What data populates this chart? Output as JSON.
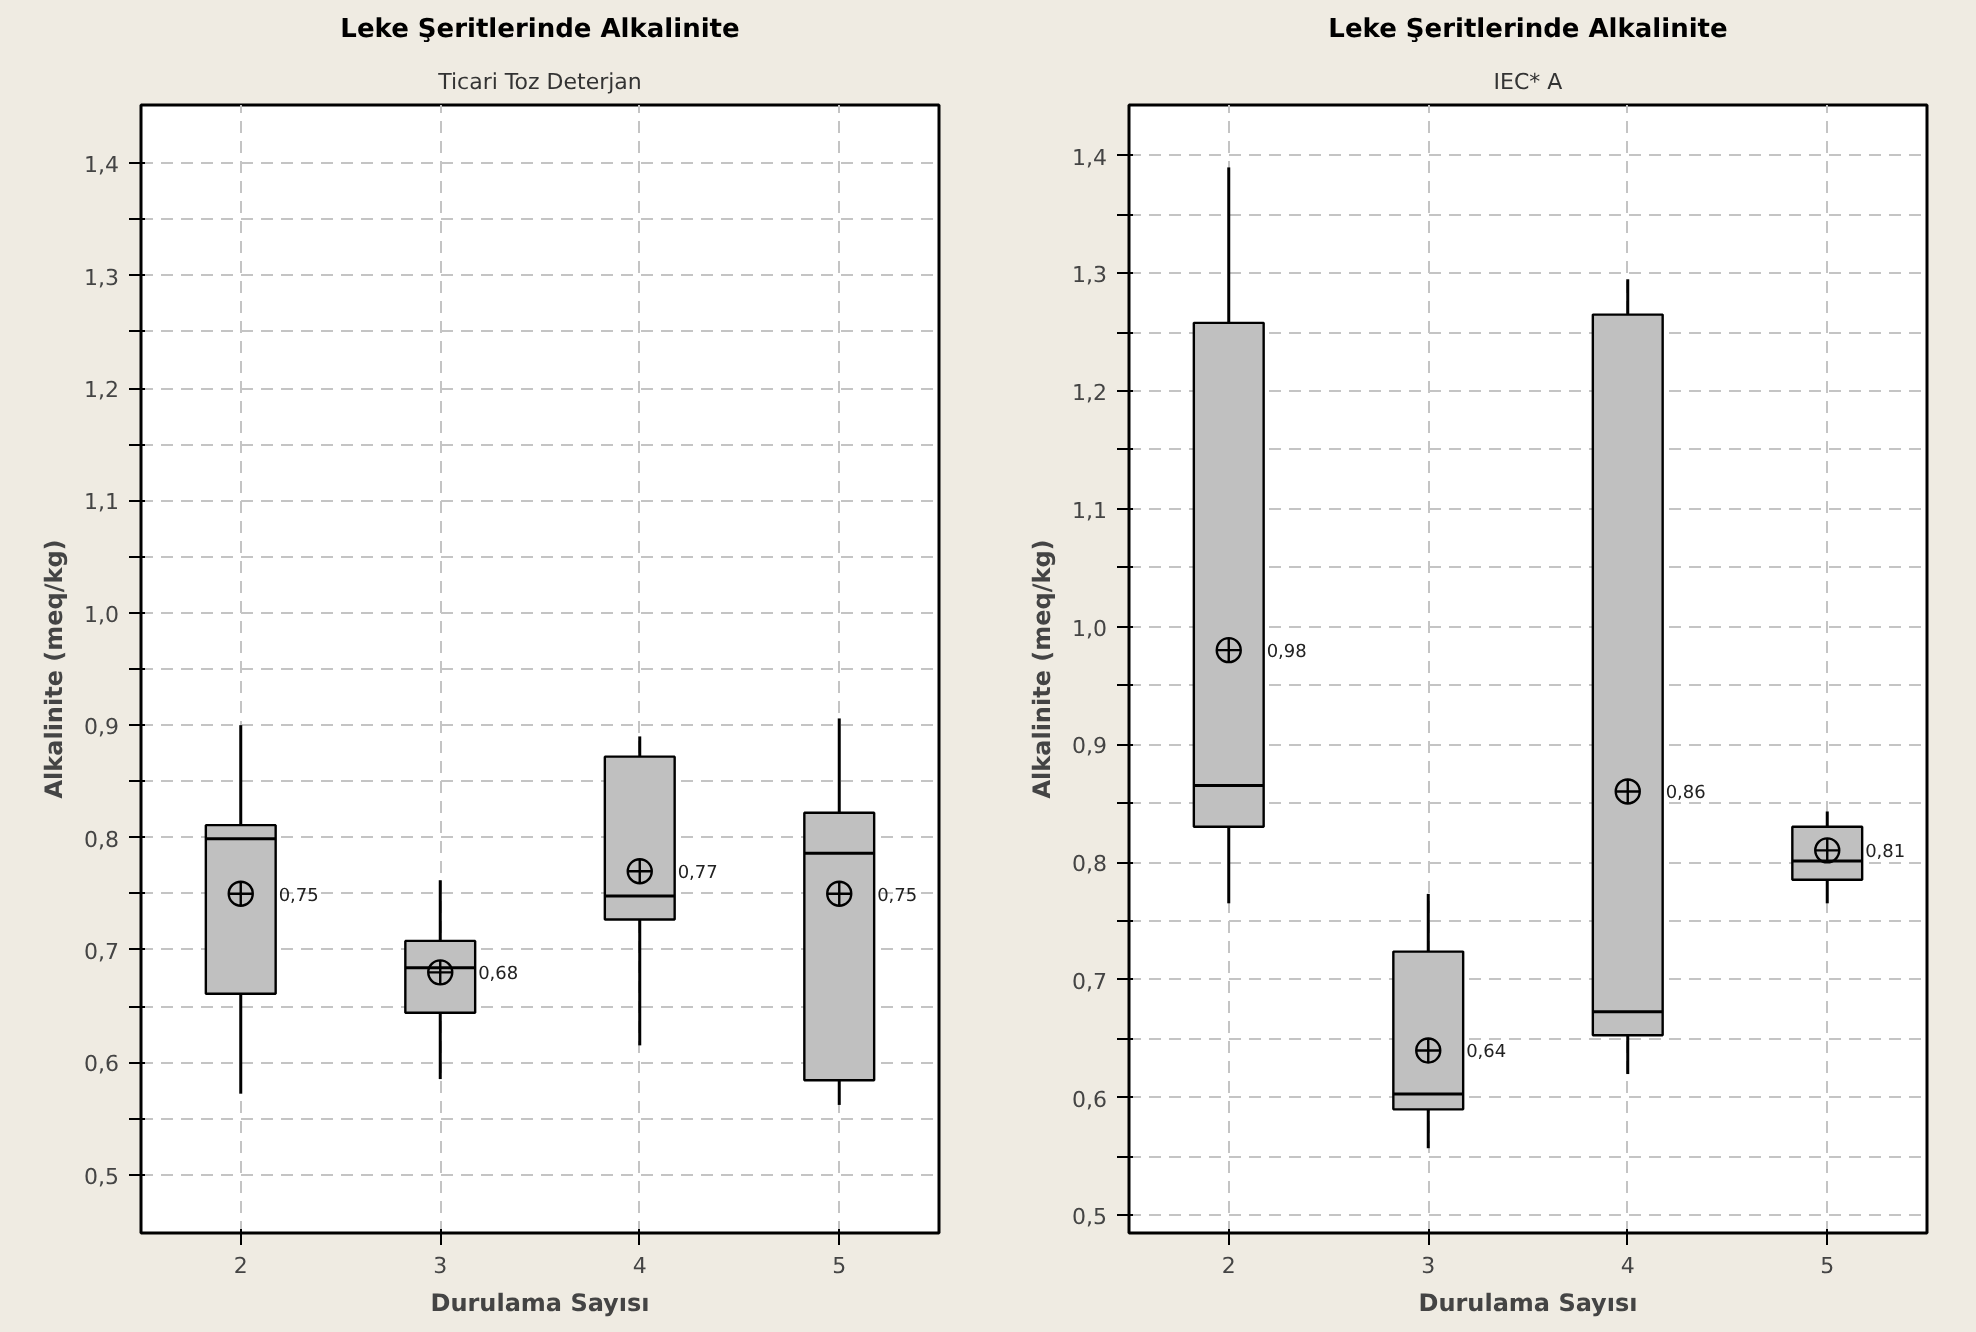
{
  "chart_data": [
    {
      "type": "box",
      "title": "Leke Şeritlerinde Alkalinite",
      "subtitle": "Ticari Toz Deterjan",
      "xlabel": "Durulama Sayısı",
      "ylabel": "Alkalinite (meq/kg)",
      "categories": [
        "2",
        "3",
        "4",
        "5"
      ],
      "color": "#c0c0c0",
      "boxes": [
        {
          "low": 0.572,
          "q1": 0.661,
          "median": 0.799,
          "q3": 0.811,
          "high": 0.9,
          "mean": 0.75
        },
        {
          "low": 0.585,
          "q1": 0.644,
          "median": 0.684,
          "q3": 0.708,
          "high": 0.762,
          "mean": 0.68
        },
        {
          "low": 0.615,
          "q1": 0.727,
          "median": 0.748,
          "q3": 0.872,
          "high": 0.89,
          "mean": 0.77
        },
        {
          "low": 0.562,
          "q1": 0.584,
          "median": 0.786,
          "q3": 0.822,
          "high": 0.906,
          "mean": 0.75
        }
      ],
      "value_labels": [
        "0,75",
        "0,68",
        "0,77",
        "0,75"
      ],
      "ylim": [
        0.448,
        1.452
      ],
      "yticks": [
        {
          "value": 0.5,
          "label": "0,5"
        },
        {
          "value": 0.55,
          "label": null
        },
        {
          "value": 0.6,
          "label": "0,6"
        },
        {
          "value": 0.65,
          "label": null
        },
        {
          "value": 0.7,
          "label": "0,7"
        },
        {
          "value": 0.75,
          "label": null
        },
        {
          "value": 0.8,
          "label": "0,8"
        },
        {
          "value": 0.85,
          "label": null
        },
        {
          "value": 0.9,
          "label": "0,9"
        },
        {
          "value": 0.95,
          "label": null
        },
        {
          "value": 1.0,
          "label": "1,0"
        },
        {
          "value": 1.05,
          "label": null
        },
        {
          "value": 1.1,
          "label": "1,1"
        },
        {
          "value": 1.15,
          "label": null
        },
        {
          "value": 1.2,
          "label": "1,2"
        },
        {
          "value": 1.25,
          "label": null
        },
        {
          "value": 1.3,
          "label": "1,3"
        },
        {
          "value": 1.35,
          "label": null
        },
        {
          "value": 1.4,
          "label": "1,4"
        }
      ],
      "grid": true
    },
    {
      "type": "box",
      "title": "Leke Şeritlerinde Alkalinite",
      "subtitle": "IEC* A",
      "xlabel": "Durulama Sayısı",
      "ylabel": "Alkalinite (meq/kg)",
      "categories": [
        "2",
        "3",
        "4",
        "5"
      ],
      "color": "#c0c0c0",
      "boxes": [
        {
          "low": 0.765,
          "q1": 0.83,
          "median": 0.865,
          "q3": 1.258,
          "high": 1.39,
          "mean": 0.98
        },
        {
          "low": 0.557,
          "q1": 0.59,
          "median": 0.603,
          "q3": 0.724,
          "high": 0.773,
          "mean": 0.64
        },
        {
          "low": 0.62,
          "q1": 0.653,
          "median": 0.673,
          "q3": 1.265,
          "high": 1.295,
          "mean": 0.86
        },
        {
          "low": 0.765,
          "q1": 0.785,
          "median": 0.801,
          "q3": 0.83,
          "high": 0.843,
          "mean": 0.81
        }
      ],
      "value_labels": [
        "0,98",
        "0,64",
        "0,86",
        "0,81"
      ],
      "ylim": [
        0.485,
        1.443
      ],
      "yticks": [
        {
          "value": 0.5,
          "label": "0,5"
        },
        {
          "value": 0.55,
          "label": null
        },
        {
          "value": 0.6,
          "label": "0,6"
        },
        {
          "value": 0.65,
          "label": null
        },
        {
          "value": 0.7,
          "label": "0,7"
        },
        {
          "value": 0.75,
          "label": null
        },
        {
          "value": 0.8,
          "label": "0,8"
        },
        {
          "value": 0.85,
          "label": null
        },
        {
          "value": 0.9,
          "label": "0,9"
        },
        {
          "value": 0.95,
          "label": null
        },
        {
          "value": 1.0,
          "label": "1,0"
        },
        {
          "value": 1.05,
          "label": null
        },
        {
          "value": 1.1,
          "label": "1,1"
        },
        {
          "value": 1.15,
          "label": null
        },
        {
          "value": 1.2,
          "label": "1,2"
        },
        {
          "value": 1.25,
          "label": null
        },
        {
          "value": 1.3,
          "label": "1,3"
        },
        {
          "value": 1.35,
          "label": null
        },
        {
          "value": 1.4,
          "label": "1,4"
        }
      ],
      "grid": true
    }
  ]
}
